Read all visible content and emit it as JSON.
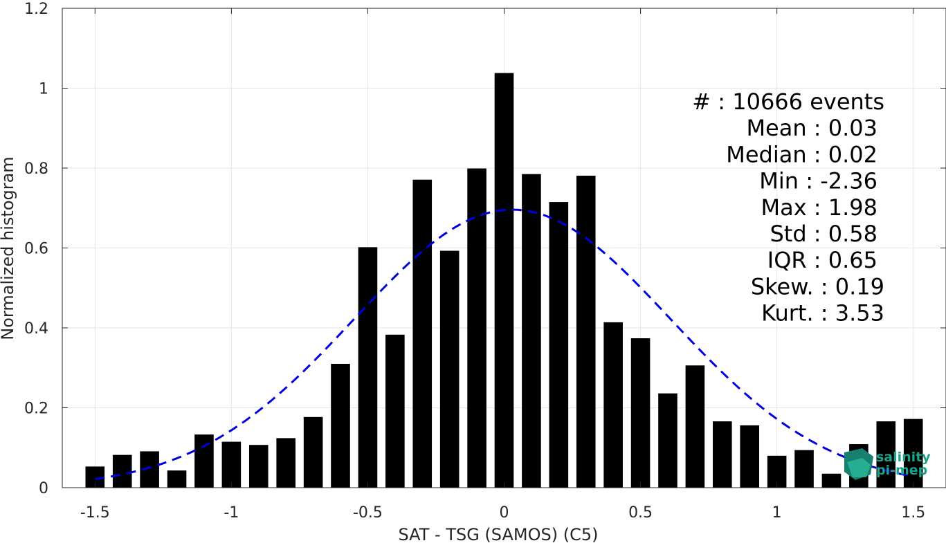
{
  "chart_data": {
    "type": "bar",
    "xlabel": "SAT - TSG (SAMOS) (C5)",
    "ylabel": "Normalized histogram",
    "xlim": [
      -1.62,
      1.62
    ],
    "ylim": [
      0,
      1.2
    ],
    "x_ticks": [
      -1.5,
      -1,
      -0.5,
      0,
      0.5,
      1,
      1.5
    ],
    "x_tick_labels": [
      "-1.5",
      "-1",
      "-0.5",
      "0",
      "0.5",
      "1",
      "1.5"
    ],
    "y_ticks": [
      0,
      0.2,
      0.4,
      0.6,
      0.8,
      1,
      1.2
    ],
    "y_tick_labels": [
      "0",
      "0.2",
      "0.4",
      "0.6",
      "0.8",
      "1",
      "1.2"
    ],
    "grid": true,
    "bar_color": "#000000",
    "bin_width": 0.1,
    "bins": [
      {
        "x": -1.5,
        "value": 0.053
      },
      {
        "x": -1.4,
        "value": 0.082
      },
      {
        "x": -1.3,
        "value": 0.091
      },
      {
        "x": -1.2,
        "value": 0.043
      },
      {
        "x": -1.1,
        "value": 0.133
      },
      {
        "x": -1.0,
        "value": 0.115
      },
      {
        "x": -0.9,
        "value": 0.107
      },
      {
        "x": -0.8,
        "value": 0.124
      },
      {
        "x": -0.7,
        "value": 0.177
      },
      {
        "x": -0.6,
        "value": 0.31
      },
      {
        "x": -0.5,
        "value": 0.602
      },
      {
        "x": -0.4,
        "value": 0.383
      },
      {
        "x": -0.3,
        "value": 0.771
      },
      {
        "x": -0.2,
        "value": 0.593
      },
      {
        "x": -0.1,
        "value": 0.799
      },
      {
        "x": 0.0,
        "value": 1.038
      },
      {
        "x": 0.1,
        "value": 0.785
      },
      {
        "x": 0.2,
        "value": 0.715
      },
      {
        "x": 0.3,
        "value": 0.781
      },
      {
        "x": 0.4,
        "value": 0.414
      },
      {
        "x": 0.5,
        "value": 0.374
      },
      {
        "x": 0.6,
        "value": 0.236
      },
      {
        "x": 0.7,
        "value": 0.306
      },
      {
        "x": 0.8,
        "value": 0.166
      },
      {
        "x": 0.9,
        "value": 0.156
      },
      {
        "x": 1.0,
        "value": 0.08
      },
      {
        "x": 1.1,
        "value": 0.094
      },
      {
        "x": 1.2,
        "value": 0.035
      },
      {
        "x": 1.3,
        "value": 0.109
      },
      {
        "x": 1.4,
        "value": 0.166
      },
      {
        "x": 1.5,
        "value": 0.172
      }
    ],
    "fit_curve": {
      "kind": "gaussian",
      "mean": 0.03,
      "std": 0.58,
      "peak": 0.696,
      "x_range": [
        -1.5,
        1.5
      ],
      "color": "#0000dd",
      "style": "dashed"
    },
    "annotations": [
      "#  : 10666 events",
      "Mean : 0.03",
      "Median : 0.02",
      "Min : -2.36",
      "Max : 1.98",
      "Std : 0.58",
      "IQR : 0.65",
      "Skew. : 0.19",
      "Kurt. : 3.53"
    ],
    "annotation_placement": "top-right"
  },
  "logo": {
    "line1": "salinity",
    "line2": "pi-mep",
    "color": "#1aa38a"
  }
}
